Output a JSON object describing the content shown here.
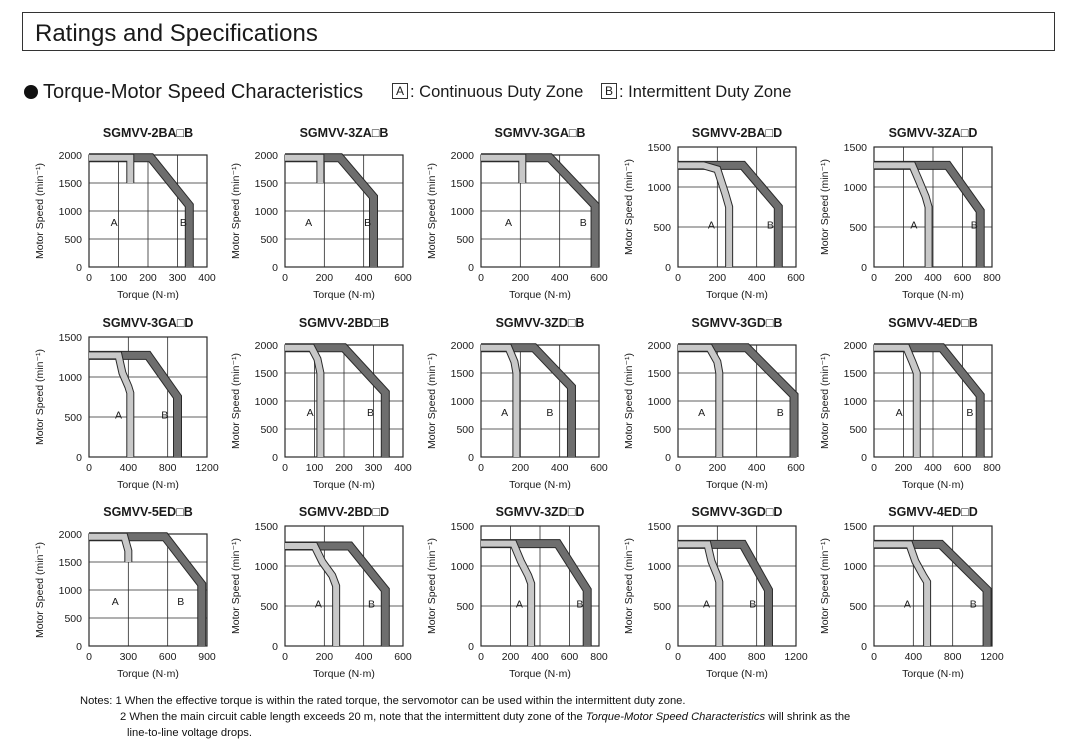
{
  "page": {
    "title": "Ratings and Specifications",
    "section_title": "Torque-Motor Speed Characteristics",
    "legend": [
      {
        "key": "A",
        "label": ": Continuous Duty Zone"
      },
      {
        "key": "B",
        "label": ": Intermittent Duty Zone"
      }
    ],
    "notes": [
      "Notes: 1 When the effective torque is within the rated torque, the servomotor can be used within the intermittent duty zone.",
      "2 When the main circuit cable length exceeds 20 m, note that the intermittent duty zone of the ",
      "Torque-Motor Speed Characteristics",
      " will shrink as the",
      "line-to-line voltage drops."
    ]
  },
  "colors": {
    "continuous": "#c8c8c8",
    "intermittent": "#6e6e6e",
    "grid": "#2a2a2a"
  },
  "chart_data": [
    {
      "type": "line",
      "title": "SGMVV-2BA□B",
      "xlabel": "Torque (N·m)",
      "ylabel": "Motor Speed (min⁻¹)",
      "xlim": [
        0,
        400
      ],
      "ylim": [
        0,
        2000
      ],
      "xticks": [
        0,
        100,
        200,
        300,
        400
      ],
      "yticks": [
        0,
        500,
        1000,
        1500,
        2000
      ],
      "series": [
        {
          "name": "A",
          "x": [
            0,
            140,
            140
          ],
          "y": [
            1950,
            1950,
            1500
          ]
        },
        {
          "name": "B",
          "x": [
            0,
            210,
            340,
            340
          ],
          "y": [
            1950,
            1950,
            1100,
            0
          ]
        }
      ],
      "labels": {
        "A": [
          85,
          800
        ],
        "B": [
          320,
          800
        ]
      }
    },
    {
      "type": "line",
      "title": "SGMVV-3ZA□B",
      "xlabel": "Torque (N·m)",
      "ylabel": "Motor Speed (min⁻¹)",
      "xlim": [
        0,
        600
      ],
      "ylim": [
        0,
        2000
      ],
      "xticks": [
        0,
        200,
        400,
        600
      ],
      "yticks": [
        0,
        500,
        1000,
        1500,
        2000
      ],
      "series": [
        {
          "name": "A",
          "x": [
            0,
            180,
            180
          ],
          "y": [
            1950,
            1950,
            1500
          ]
        },
        {
          "name": "B",
          "x": [
            0,
            280,
            450,
            450
          ],
          "y": [
            1950,
            1950,
            1250,
            0
          ]
        }
      ],
      "labels": {
        "A": [
          120,
          800
        ],
        "B": [
          420,
          800
        ]
      }
    },
    {
      "type": "line",
      "title": "SGMVV-3GA□B",
      "xlabel": "Torque (N·m)",
      "ylabel": "Motor Speed (min⁻¹)",
      "xlim": [
        0,
        600
      ],
      "ylim": [
        0,
        2000
      ],
      "xticks": [
        0,
        200,
        400,
        600
      ],
      "yticks": [
        0,
        500,
        1000,
        1500,
        2000
      ],
      "series": [
        {
          "name": "A",
          "x": [
            0,
            210,
            210
          ],
          "y": [
            1950,
            1950,
            1500
          ]
        },
        {
          "name": "B",
          "x": [
            0,
            350,
            580,
            580
          ],
          "y": [
            1950,
            1950,
            1100,
            0
          ]
        }
      ],
      "labels": {
        "A": [
          140,
          800
        ],
        "B": [
          520,
          800
        ]
      }
    },
    {
      "type": "line",
      "title": "SGMVV-2BA□D",
      "xlabel": "Torque (N·m)",
      "ylabel": "Motor Speed (min⁻¹)",
      "xlim": [
        0,
        600
      ],
      "ylim": [
        0,
        1500
      ],
      "xticks": [
        0,
        200,
        400,
        600
      ],
      "yticks": [
        0,
        500,
        1000,
        1500
      ],
      "series": [
        {
          "name": "A",
          "x": [
            0,
            130,
            200,
            240,
            260,
            260
          ],
          "y": [
            1270,
            1270,
            1220,
            920,
            750,
            0
          ]
        },
        {
          "name": "B",
          "x": [
            0,
            330,
            510,
            510
          ],
          "y": [
            1270,
            1270,
            750,
            0
          ]
        }
      ],
      "labels": {
        "A": [
          170,
          530
        ],
        "B": [
          470,
          530
        ]
      }
    },
    {
      "type": "line",
      "title": "SGMVV-3ZA□D",
      "xlabel": "Torque (N·m)",
      "ylabel": "Motor Speed (min⁻¹)",
      "xlim": [
        0,
        800
      ],
      "ylim": [
        0,
        1500
      ],
      "xticks": [
        0,
        200,
        400,
        600,
        800
      ],
      "yticks": [
        0,
        500,
        1000,
        1500
      ],
      "series": [
        {
          "name": "A",
          "x": [
            0,
            260,
            300,
            350,
            370,
            370
          ],
          "y": [
            1270,
            1270,
            1100,
            880,
            750,
            0
          ]
        },
        {
          "name": "B",
          "x": [
            0,
            500,
            720,
            720
          ],
          "y": [
            1270,
            1270,
            700,
            0
          ]
        }
      ],
      "labels": {
        "A": [
          270,
          530
        ],
        "B": [
          680,
          530
        ]
      }
    },
    {
      "type": "line",
      "title": "SGMVV-3GA□D",
      "xlabel": "Torque (N·m)",
      "ylabel": "Motor Speed (min⁻¹)",
      "xlim": [
        0,
        1200
      ],
      "ylim": [
        0,
        1500
      ],
      "xticks": [
        0,
        400,
        800,
        1200
      ],
      "yticks": [
        0,
        500,
        1000,
        1500
      ],
      "series": [
        {
          "name": "A",
          "x": [
            0,
            300,
            340,
            400,
            420,
            420
          ],
          "y": [
            1270,
            1270,
            1050,
            880,
            800,
            0
          ]
        },
        {
          "name": "B",
          "x": [
            0,
            600,
            900,
            900
          ],
          "y": [
            1270,
            1270,
            750,
            0
          ]
        }
      ],
      "labels": {
        "A": [
          300,
          530
        ],
        "B": [
          770,
          530
        ]
      }
    },
    {
      "type": "line",
      "title": "SGMVV-2BD□B",
      "xlabel": "Torque (N·m)",
      "ylabel": "Motor Speed (min⁻¹)",
      "xlim": [
        0,
        400
      ],
      "ylim": [
        0,
        2000
      ],
      "xticks": [
        0,
        100,
        200,
        300,
        400
      ],
      "yticks": [
        0,
        500,
        1000,
        1500,
        2000
      ],
      "series": [
        {
          "name": "A",
          "x": [
            0,
            90,
            110,
            120,
            120
          ],
          "y": [
            1950,
            1950,
            1750,
            1500,
            0
          ]
        },
        {
          "name": "B",
          "x": [
            0,
            200,
            340,
            340
          ],
          "y": [
            1950,
            1950,
            1150,
            0
          ]
        }
      ],
      "labels": {
        "A": [
          85,
          800
        ],
        "B": [
          290,
          800
        ]
      }
    },
    {
      "type": "line",
      "title": "SGMVV-3ZD□B",
      "xlabel": "Torque (N·m)",
      "ylabel": "Motor Speed (min⁻¹)",
      "xlim": [
        0,
        600
      ],
      "ylim": [
        0,
        2000
      ],
      "xticks": [
        0,
        200,
        400,
        600
      ],
      "yticks": [
        0,
        500,
        1000,
        1500,
        2000
      ],
      "series": [
        {
          "name": "A",
          "x": [
            0,
            140,
            170,
            180,
            180
          ],
          "y": [
            1950,
            1950,
            1700,
            1500,
            0
          ]
        },
        {
          "name": "B",
          "x": [
            0,
            270,
            460,
            460
          ],
          "y": [
            1950,
            1950,
            1250,
            0
          ]
        }
      ],
      "labels": {
        "A": [
          120,
          800
        ],
        "B": [
          350,
          800
        ]
      }
    },
    {
      "type": "line",
      "title": "SGMVV-3GD□B",
      "xlabel": "Torque (N·m)",
      "ylabel": "Motor Speed (min⁻¹)",
      "xlim": [
        0,
        600
      ],
      "ylim": [
        0,
        2000
      ],
      "xticks": [
        0,
        200,
        400,
        600
      ],
      "yticks": [
        0,
        500,
        1000,
        1500,
        2000
      ],
      "series": [
        {
          "name": "A",
          "x": [
            0,
            160,
            200,
            210,
            210
          ],
          "y": [
            1950,
            1950,
            1700,
            1500,
            0
          ]
        },
        {
          "name": "B",
          "x": [
            0,
            350,
            590,
            590
          ],
          "y": [
            1950,
            1950,
            1100,
            0
          ]
        }
      ],
      "labels": {
        "A": [
          120,
          800
        ],
        "B": [
          520,
          800
        ]
      }
    },
    {
      "type": "line",
      "title": "SGMVV-4ED□B",
      "xlabel": "Torque (N·m)",
      "ylabel": "Motor Speed (min⁻¹)",
      "xlim": [
        0,
        800
      ],
      "ylim": [
        0,
        2000
      ],
      "xticks": [
        0,
        200,
        400,
        600,
        800
      ],
      "yticks": [
        0,
        500,
        1000,
        1500,
        2000
      ],
      "series": [
        {
          "name": "A",
          "x": [
            0,
            220,
            260,
            290,
            290
          ],
          "y": [
            1950,
            1950,
            1700,
            1500,
            0
          ]
        },
        {
          "name": "B",
          "x": [
            0,
            460,
            720,
            720
          ],
          "y": [
            1950,
            1950,
            1100,
            0
          ]
        }
      ],
      "labels": {
        "A": [
          170,
          800
        ],
        "B": [
          650,
          800
        ]
      }
    },
    {
      "type": "line",
      "title": "SGMVV-5ED□B",
      "xlabel": "Torque (N·m)",
      "ylabel": "Motor Speed (min⁻¹)",
      "xlim": [
        0,
        900
      ],
      "ylim": [
        0,
        2000
      ],
      "xticks": [
        0,
        300,
        600,
        900
      ],
      "yticks": [
        0,
        500,
        1000,
        1500,
        2000
      ],
      "series": [
        {
          "name": "A",
          "x": [
            0,
            270,
            300,
            300
          ],
          "y": [
            1950,
            1950,
            1700,
            1500
          ]
        },
        {
          "name": "B",
          "x": [
            0,
            580,
            860,
            860
          ],
          "y": [
            1950,
            1950,
            1100,
            0
          ]
        }
      ],
      "labels": {
        "A": [
          200,
          800
        ],
        "B": [
          700,
          800
        ]
      }
    },
    {
      "type": "line",
      "title": "SGMVV-2BD□D",
      "xlabel": "Torque (N·m)",
      "ylabel": "Motor Speed (min⁻¹)",
      "xlim": [
        0,
        600
      ],
      "ylim": [
        0,
        1500
      ],
      "xticks": [
        0,
        200,
        400,
        600
      ],
      "yticks": [
        0,
        500,
        1000,
        1500
      ],
      "series": [
        {
          "name": "A",
          "x": [
            0,
            150,
            190,
            240,
            260,
            260
          ],
          "y": [
            1250,
            1250,
            1050,
            880,
            750,
            0
          ]
        },
        {
          "name": "B",
          "x": [
            0,
            330,
            510,
            510
          ],
          "y": [
            1250,
            1250,
            700,
            0
          ]
        }
      ],
      "labels": {
        "A": [
          170,
          530
        ],
        "B": [
          440,
          530
        ]
      }
    },
    {
      "type": "line",
      "title": "SGMVV-3ZD□D",
      "xlabel": "Torque (N·m)",
      "ylabel": "Motor Speed (min⁻¹)",
      "xlim": [
        0,
        800
      ],
      "ylim": [
        0,
        1500
      ],
      "xticks": [
        0,
        200,
        400,
        600,
        800
      ],
      "yticks": [
        0,
        500,
        1000,
        1500
      ],
      "series": [
        {
          "name": "A",
          "x": [
            0,
            220,
            270,
            320,
            340,
            340
          ],
          "y": [
            1280,
            1280,
            1060,
            880,
            780,
            0
          ]
        },
        {
          "name": "B",
          "x": [
            0,
            520,
            720,
            720
          ],
          "y": [
            1280,
            1280,
            700,
            0
          ]
        }
      ],
      "labels": {
        "A": [
          260,
          530
        ],
        "B": [
          670,
          530
        ]
      }
    },
    {
      "type": "line",
      "title": "SGMVV-3GD□D",
      "xlabel": "Torque (N·m)",
      "ylabel": "Motor Speed (min⁻¹)",
      "xlim": [
        0,
        1200
      ],
      "ylim": [
        0,
        1500
      ],
      "xticks": [
        0,
        400,
        800,
        1200
      ],
      "yticks": [
        0,
        500,
        1000,
        1500
      ],
      "series": [
        {
          "name": "A",
          "x": [
            0,
            300,
            340,
            400,
            420,
            420
          ],
          "y": [
            1270,
            1270,
            1060,
            880,
            800,
            0
          ]
        },
        {
          "name": "B",
          "x": [
            0,
            660,
            920,
            920
          ],
          "y": [
            1270,
            1270,
            700,
            0
          ]
        }
      ],
      "labels": {
        "A": [
          290,
          530
        ],
        "B": [
          760,
          530
        ]
      }
    },
    {
      "type": "line",
      "title": "SGMVV-4ED□D",
      "xlabel": "Torque (N·m)",
      "ylabel": "Motor Speed (min⁻¹)",
      "xlim": [
        0,
        1200
      ],
      "ylim": [
        0,
        1500
      ],
      "xticks": [
        0,
        400,
        800,
        1200
      ],
      "yticks": [
        0,
        500,
        1000,
        1500
      ],
      "series": [
        {
          "name": "A",
          "x": [
            0,
            360,
            420,
            500,
            540,
            540
          ],
          "y": [
            1270,
            1270,
            1060,
            880,
            800,
            0
          ]
        },
        {
          "name": "B",
          "x": [
            0,
            680,
            1150,
            1150
          ],
          "y": [
            1270,
            1270,
            700,
            0
          ]
        }
      ],
      "labels": {
        "A": [
          340,
          530
        ],
        "B": [
          1010,
          530
        ]
      }
    }
  ]
}
